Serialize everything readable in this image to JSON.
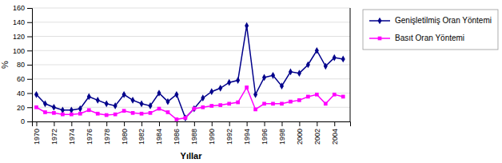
{
  "chart_data": {
    "type": "line",
    "xlabel": "Yıllar",
    "ylabel": "%",
    "x": [
      1970,
      1971,
      1972,
      1973,
      1974,
      1975,
      1976,
      1977,
      1978,
      1979,
      1980,
      1981,
      1982,
      1983,
      1984,
      1985,
      1986,
      1987,
      1988,
      1989,
      1990,
      1991,
      1992,
      1993,
      1994,
      1995,
      1996,
      1997,
      1998,
      1999,
      2000,
      2001,
      2002,
      2003,
      2004,
      2005
    ],
    "series": [
      {
        "name": "Genişletilmiş Oran Yöntemi",
        "color": "#00008B",
        "marker": "diamond",
        "values": [
          38,
          25,
          20,
          16,
          16,
          18,
          35,
          30,
          25,
          22,
          38,
          30,
          25,
          22,
          40,
          28,
          38,
          5,
          18,
          33,
          42,
          47,
          55,
          58,
          135,
          38,
          62,
          65,
          50,
          70,
          68,
          80,
          100,
          78,
          90,
          88
        ]
      },
      {
        "name": "Basıt Oran Yöntemi",
        "color": "#FF00FF",
        "marker": "square",
        "values": [
          20,
          13,
          12,
          10,
          10,
          11,
          16,
          11,
          9,
          10,
          15,
          12,
          11,
          12,
          18,
          13,
          3,
          5,
          18,
          20,
          22,
          23,
          25,
          27,
          48,
          17,
          25,
          25,
          25,
          28,
          30,
          35,
          38,
          25,
          38,
          35
        ]
      }
    ],
    "xlim": [
      1969.5,
      2005.8
    ],
    "xticks": [
      1970,
      1972,
      1974,
      1976,
      1978,
      1980,
      1982,
      1984,
      1986,
      1988,
      1990,
      1992,
      1994,
      1996,
      1998,
      2000,
      2002,
      2004
    ],
    "ylim": [
      0,
      160
    ],
    "yticks": [
      0,
      20,
      40,
      60,
      80,
      100,
      120,
      140,
      160
    ],
    "grid": true,
    "legend": "right"
  }
}
